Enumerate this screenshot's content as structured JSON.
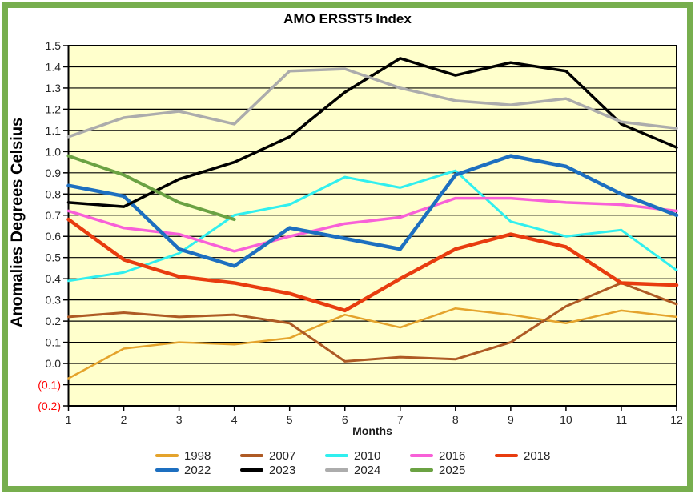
{
  "frame": {
    "border_color": "#77AE4E",
    "background": "#FFFFFF"
  },
  "chart_data": {
    "type": "line",
    "title": "AMO ERSST5 Index",
    "xlabel": "Months",
    "ylabel": "Anomalies Degrees Celsius",
    "plot_bg": "#FFFFCC",
    "grid": true,
    "gridline_color": "#000000",
    "axis_text_color": "#262626",
    "negative_tick_color": "#FF0000",
    "negative_tick_format": "parentheses",
    "legend_position": "bottom",
    "x": [
      1,
      2,
      3,
      4,
      5,
      6,
      7,
      8,
      9,
      10,
      11,
      12
    ],
    "ylim": [
      -0.2,
      1.5
    ],
    "ytick_step": 0.1,
    "series": [
      {
        "name": "1998",
        "color": "#E4A32C",
        "width": 2.5,
        "values": [
          -0.07,
          0.07,
          0.1,
          0.09,
          0.12,
          0.23,
          0.17,
          0.26,
          0.23,
          0.19,
          0.25,
          0.22
        ]
      },
      {
        "name": "2007",
        "color": "#AE5A24",
        "width": 3,
        "values": [
          0.22,
          0.24,
          0.22,
          0.23,
          0.19,
          0.01,
          0.03,
          0.02,
          0.1,
          0.27,
          0.38,
          0.28
        ]
      },
      {
        "name": "2010",
        "color": "#30EFEF",
        "width": 3,
        "values": [
          0.39,
          0.43,
          0.52,
          0.7,
          0.75,
          0.88,
          0.83,
          0.91,
          0.67,
          0.6,
          0.63,
          0.44
        ]
      },
      {
        "name": "2016",
        "color": "#F860D8",
        "width": 3.5,
        "values": [
          0.72,
          0.64,
          0.61,
          0.53,
          0.6,
          0.66,
          0.69,
          0.78,
          0.78,
          0.76,
          0.75,
          0.72
        ]
      },
      {
        "name": "2018",
        "color": "#E83C0F",
        "width": 4.5,
        "values": [
          0.68,
          0.49,
          0.41,
          0.38,
          0.33,
          0.25,
          0.4,
          0.54,
          0.61,
          0.55,
          0.38,
          0.37
        ]
      },
      {
        "name": "2022",
        "color": "#1D6FC0",
        "width": 4.5,
        "values": [
          0.84,
          0.79,
          0.54,
          0.46,
          0.64,
          0.59,
          0.54,
          0.89,
          0.98,
          0.93,
          0.8,
          0.7
        ]
      },
      {
        "name": "2023",
        "color": "#000000",
        "width": 3.5,
        "values": [
          0.76,
          0.74,
          0.87,
          0.95,
          1.07,
          1.28,
          1.44,
          1.36,
          1.42,
          1.38,
          1.13,
          1.02
        ]
      },
      {
        "name": "2024",
        "color": "#ACACAC",
        "width": 3.5,
        "values": [
          1.07,
          1.16,
          1.19,
          1.13,
          1.38,
          1.39,
          1.3,
          1.24,
          1.22,
          1.25,
          1.14,
          1.11
        ]
      },
      {
        "name": "2025",
        "color": "#6BA243",
        "width": 4,
        "values": [
          0.98,
          0.89,
          0.76,
          0.68,
          null,
          null,
          null,
          null,
          null,
          null,
          null,
          null
        ]
      }
    ]
  }
}
